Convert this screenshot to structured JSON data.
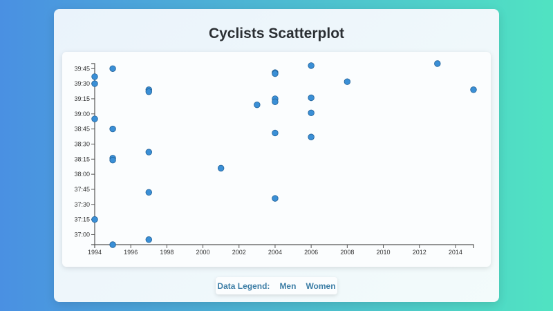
{
  "page": {
    "title": "Cyclists Scatterplot"
  },
  "legend": {
    "label": "Data Legend:",
    "items": [
      "Men",
      "Women"
    ]
  },
  "colors": {
    "point_fill": "#3a8fd6",
    "point_stroke": "#1f5f96",
    "legend_text": "#3d7ea6",
    "title_text": "#2b2f33",
    "bg_gradient_start": "#4a90e2",
    "bg_gradient_end": "#50e3c2"
  },
  "chart_data": {
    "type": "scatter",
    "title": "Cyclists Scatterplot",
    "xlabel": "",
    "ylabel": "",
    "x_ticks": [
      1994,
      1996,
      1998,
      2000,
      2002,
      2004,
      2006,
      2008,
      2010,
      2012,
      2014
    ],
    "y_ticks": [
      "37:00",
      "37:15",
      "37:30",
      "37:45",
      "38:00",
      "38:15",
      "38:30",
      "38:45",
      "39:00",
      "39:15",
      "39:30",
      "39:45"
    ],
    "xlim": [
      1994,
      2015
    ],
    "ylim_seconds": [
      2210,
      2390
    ],
    "y_axis_inverted": true,
    "grid": false,
    "legend_position": "bottom-center",
    "legend_entries": [
      "Men",
      "Women"
    ],
    "points": [
      {
        "year": 1994,
        "time": "39:37",
        "seconds": 2377
      },
      {
        "year": 1994,
        "time": "39:30",
        "seconds": 2370
      },
      {
        "year": 1994,
        "time": "38:55",
        "seconds": 2335
      },
      {
        "year": 1994,
        "time": "37:15",
        "seconds": 2235
      },
      {
        "year": 1995,
        "time": "39:45",
        "seconds": 2385
      },
      {
        "year": 1995,
        "time": "38:45",
        "seconds": 2325
      },
      {
        "year": 1995,
        "time": "38:16",
        "seconds": 2296
      },
      {
        "year": 1995,
        "time": "38:14",
        "seconds": 2294
      },
      {
        "year": 1995,
        "time": "36:50",
        "seconds": 2210
      },
      {
        "year": 1997,
        "time": "39:24",
        "seconds": 2364
      },
      {
        "year": 1997,
        "time": "39:22",
        "seconds": 2362
      },
      {
        "year": 1997,
        "time": "38:22",
        "seconds": 2302
      },
      {
        "year": 1997,
        "time": "37:42",
        "seconds": 2262
      },
      {
        "year": 1997,
        "time": "36:55",
        "seconds": 2215
      },
      {
        "year": 2001,
        "time": "38:06",
        "seconds": 2286
      },
      {
        "year": 2003,
        "time": "39:09",
        "seconds": 2349
      },
      {
        "year": 2004,
        "time": "39:41",
        "seconds": 2381
      },
      {
        "year": 2004,
        "time": "39:40",
        "seconds": 2380
      },
      {
        "year": 2004,
        "time": "39:15",
        "seconds": 2355
      },
      {
        "year": 2004,
        "time": "39:12",
        "seconds": 2352
      },
      {
        "year": 2004,
        "time": "38:41",
        "seconds": 2321
      },
      {
        "year": 2004,
        "time": "37:36",
        "seconds": 2256
      },
      {
        "year": 2006,
        "time": "39:48",
        "seconds": 2388
      },
      {
        "year": 2006,
        "time": "39:16",
        "seconds": 2356
      },
      {
        "year": 2006,
        "time": "39:01",
        "seconds": 2341
      },
      {
        "year": 2006,
        "time": "38:37",
        "seconds": 2317
      },
      {
        "year": 2008,
        "time": "39:32",
        "seconds": 2372
      },
      {
        "year": 2013,
        "time": "39:50",
        "seconds": 2390
      },
      {
        "year": 2015,
        "time": "39:24",
        "seconds": 2364
      }
    ]
  }
}
